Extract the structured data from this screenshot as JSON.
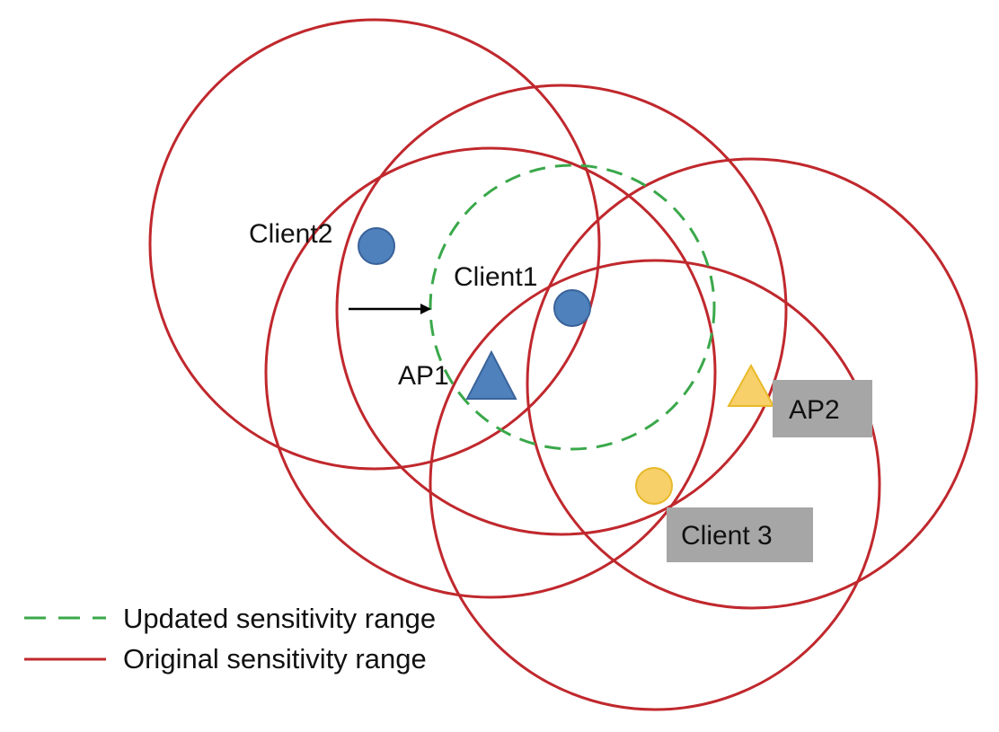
{
  "colors": {
    "original_range": "#c0282d",
    "updated_range": "#3aa84a",
    "blue_node": "#4f81bd",
    "blue_node_stroke": "#3a639a",
    "yellow_node": "#f7d06a",
    "yellow_node_stroke": "#e8b92a",
    "label_box": "#a6a6a6",
    "arrow": "#000000"
  },
  "nodes": {
    "client1": {
      "label": "Client1",
      "shape": "circle",
      "color": "blue"
    },
    "client2": {
      "label": "Client2",
      "shape": "circle",
      "color": "blue"
    },
    "client3": {
      "label": "Client 3",
      "shape": "circle",
      "color": "yellow"
    },
    "ap1": {
      "label": "AP1",
      "shape": "triangle",
      "color": "blue"
    },
    "ap2": {
      "label": "AP2",
      "shape": "triangle",
      "color": "yellow"
    }
  },
  "legend": {
    "updated": "Updated sensitivity range",
    "original": "Original sensitivity range"
  }
}
